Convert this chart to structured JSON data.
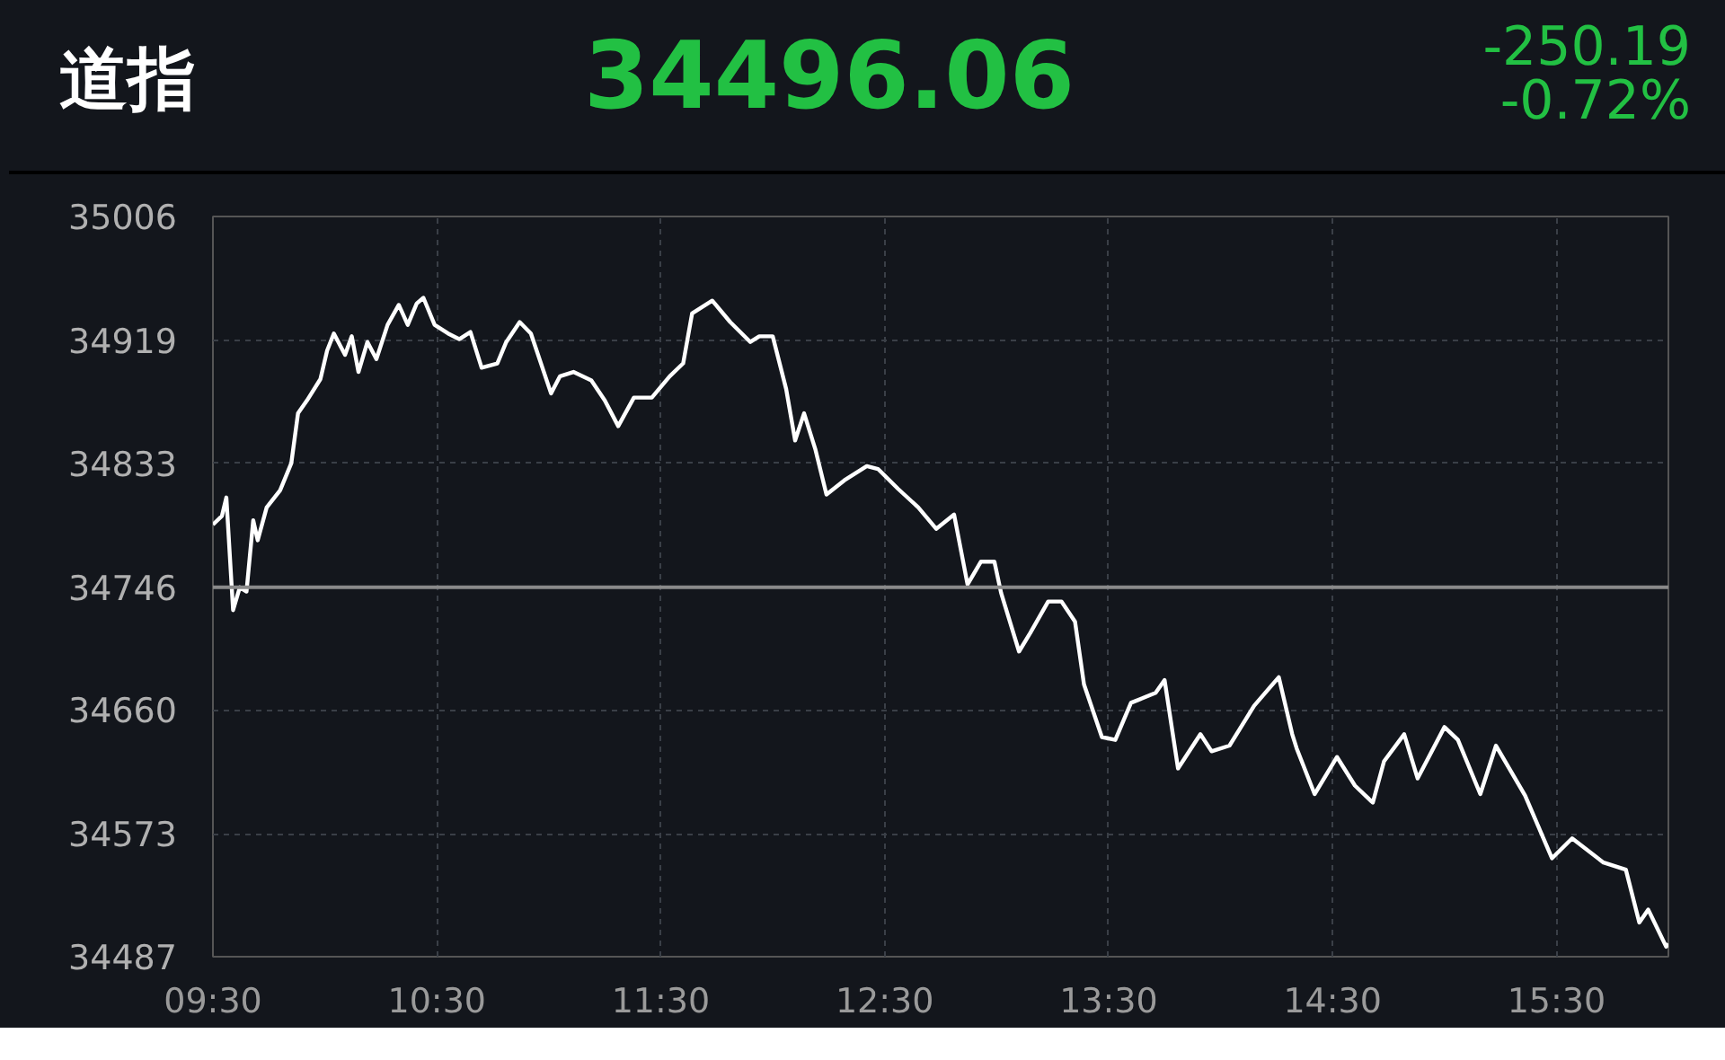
{
  "chart_data": {
    "type": "line",
    "title": "道指",
    "annotations": [
      "34496.06",
      "-250.19",
      "-0.72%"
    ],
    "x": [
      9.5,
      9.54,
      9.56,
      9.59,
      9.62,
      9.65,
      9.68,
      9.7,
      9.74,
      9.8,
      9.85,
      9.88,
      9.92,
      9.98,
      10.01,
      10.04,
      10.09,
      10.12,
      10.15,
      10.19,
      10.23,
      10.28,
      10.33,
      10.37,
      10.41,
      10.44,
      10.49,
      10.55,
      10.6,
      10.65,
      10.7,
      10.77,
      10.81,
      10.87,
      10.92,
      11.01,
      11.05,
      11.11,
      11.19,
      11.25,
      11.31,
      11.38,
      11.46,
      11.54,
      11.6,
      11.64,
      11.73,
      11.81,
      11.9,
      11.94,
      12.0,
      12.06,
      12.1,
      12.14,
      12.19,
      12.24,
      12.32,
      12.42,
      12.47,
      12.56,
      12.65,
      12.73,
      12.81,
      12.87,
      12.93,
      12.99,
      13.02,
      13.1,
      13.15,
      13.23,
      13.29,
      13.35,
      13.39,
      13.47,
      13.53,
      13.6,
      13.71,
      13.75,
      13.81,
      13.91,
      13.96,
      14.04,
      14.15,
      14.26,
      14.32,
      14.34,
      14.42,
      14.52,
      14.6,
      14.68,
      14.73,
      14.82,
      14.88,
      15.0,
      15.06,
      15.16,
      15.23,
      15.36,
      15.48,
      15.57,
      15.71,
      15.81,
      15.87,
      15.91,
      15.99,
      16.0
    ],
    "series": [
      {
        "color": "#ffffff",
        "values": [
          34790,
          34796,
          34809,
          34730,
          34746,
          34743,
          34793,
          34779,
          34802,
          34814,
          34833,
          34868,
          34877,
          34892,
          34912,
          34924,
          34909,
          34922,
          34897,
          34918,
          34906,
          34930,
          34944,
          34930,
          34945,
          34949,
          34930,
          34924,
          34920,
          34925,
          34900,
          34903,
          34918,
          34932,
          34924,
          34882,
          34894,
          34897,
          34891,
          34877,
          34859,
          34879,
          34879,
          34894,
          34903,
          34938,
          34947,
          34932,
          34918,
          34922,
          34922,
          34885,
          34849,
          34868,
          34843,
          34811,
          34821,
          34831,
          34829,
          34815,
          34802,
          34787,
          34797,
          34748,
          34764,
          34764,
          34742,
          34701,
          34714,
          34736,
          34736,
          34722,
          34678,
          34641,
          34639,
          34665,
          34672,
          34681,
          34619,
          34643,
          34631,
          34635,
          34663,
          34683,
          34643,
          34633,
          34601,
          34627,
          34607,
          34595,
          34624,
          34643,
          34612,
          34648,
          34639,
          34601,
          34635,
          34600,
          34556,
          34570,
          34553,
          34548,
          34511,
          34520,
          34494,
          34496.06
        ]
      }
    ],
    "xlim": [
      9.5,
      16.0
    ],
    "xticks": [
      {
        "value": 9.5,
        "label": "09:30"
      },
      {
        "value": 10.5,
        "label": "10:30"
      },
      {
        "value": 11.5,
        "label": "11:30"
      },
      {
        "value": 12.5,
        "label": "12:30"
      },
      {
        "value": 13.5,
        "label": "13:30"
      },
      {
        "value": 14.5,
        "label": "14:30"
      },
      {
        "value": 15.5,
        "label": "15:30"
      }
    ],
    "ylim": [
      34487,
      35006
    ],
    "yticks": [
      34487,
      34573,
      34660,
      34746,
      34833,
      34919,
      35006
    ],
    "ref_lines": [
      {
        "axis": "y",
        "value": 34746,
        "label": null,
        "color": "#8a8a8a"
      }
    ],
    "grid": true,
    "marker": "none",
    "line_style": "solid"
  }
}
